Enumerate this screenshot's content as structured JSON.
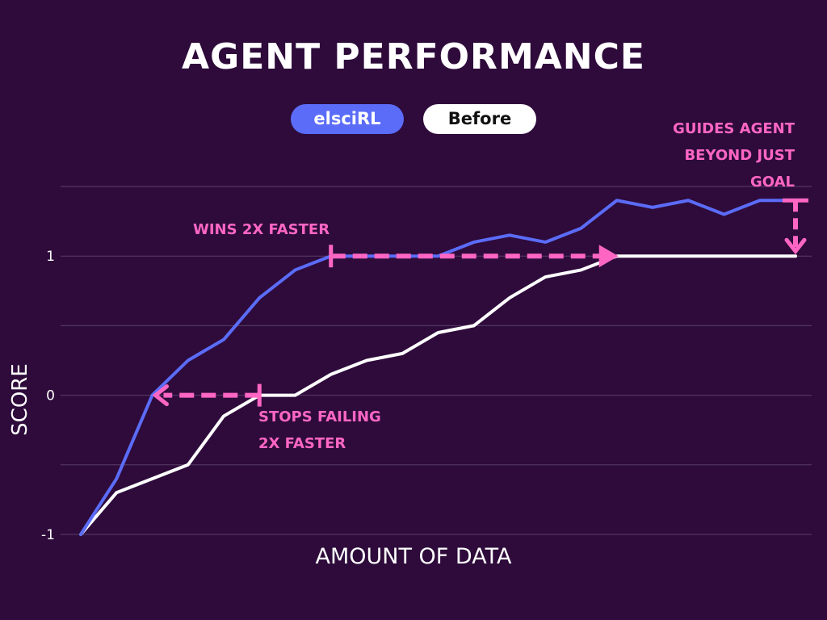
{
  "chart_data": {
    "type": "line",
    "title": "AGENT PERFORMANCE",
    "xlabel": "AMOUNT OF DATA",
    "ylabel": "SCORE",
    "ylim": [
      -1,
      1.5
    ],
    "yticks": [
      -1,
      0,
      1
    ],
    "grid": true,
    "legend_position": "top-center",
    "colors": {
      "background": "#2e0b3b",
      "grid": "#5a3d68",
      "annotation": "#ff66c4",
      "text": "#ffffff"
    },
    "series": [
      {
        "name": "elsciRL",
        "color": "#5b6cf8",
        "label_color": "#ffffff",
        "values": [
          -1,
          -0.6,
          0,
          0.25,
          0.4,
          0.7,
          0.9,
          1,
          1,
          1,
          1,
          1.1,
          1.15,
          1.1,
          1.2,
          1.4,
          1.35,
          1.4,
          1.3,
          1.4,
          1.4
        ]
      },
      {
        "name": "Before",
        "color": "#ffffff",
        "label_color": "#111111",
        "values": [
          -1,
          -0.7,
          -0.6,
          -0.5,
          -0.15,
          0,
          0,
          0.15,
          0.25,
          0.3,
          0.45,
          0.5,
          0.7,
          0.85,
          0.9,
          1,
          1,
          1,
          1,
          1,
          1
        ]
      }
    ],
    "annotations": [
      {
        "id": "wins",
        "lines": [
          "WINS 2X FASTER"
        ]
      },
      {
        "id": "stops",
        "lines": [
          "STOPS FAILING",
          "2X FASTER"
        ]
      },
      {
        "id": "guides",
        "lines": [
          "GUIDES AGENT",
          "BEYOND JUST",
          "GOAL"
        ]
      }
    ]
  }
}
